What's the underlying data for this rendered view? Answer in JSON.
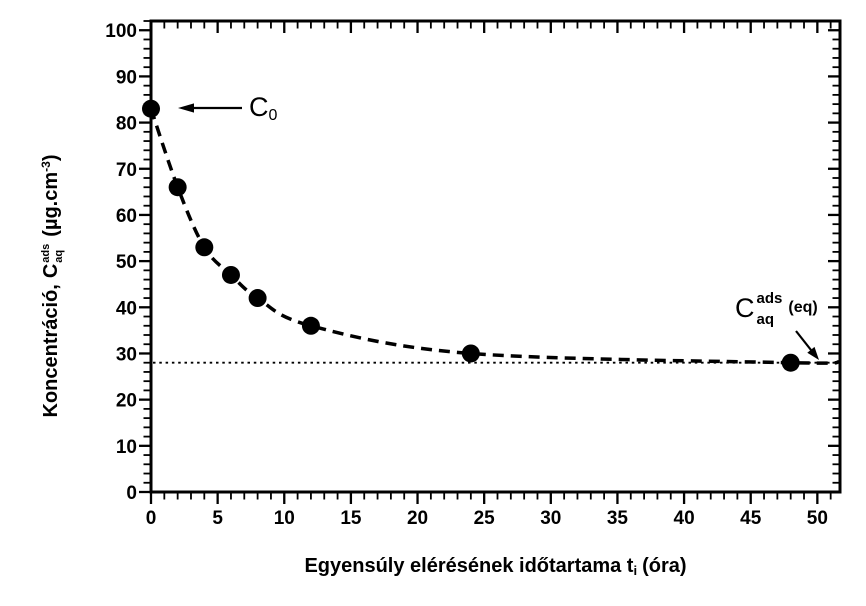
{
  "figure": {
    "background": "#ffffff",
    "foreground": "#000000"
  },
  "chart_data": {
    "type": "scatter",
    "x": [
      0,
      2,
      4,
      6,
      8,
      12,
      24,
      48
    ],
    "y": [
      83,
      66,
      53,
      47,
      42,
      36,
      30,
      28
    ],
    "initial_concentration": 83,
    "equilibrium_level": 28,
    "xlim": [
      0,
      51.7
    ],
    "ylim": [
      0,
      102
    ],
    "x_ticks": [
      0,
      5,
      10,
      15,
      20,
      25,
      30,
      35,
      40,
      45,
      50
    ],
    "y_ticks": [
      0,
      10,
      20,
      30,
      40,
      50,
      60,
      70,
      80,
      90,
      100
    ],
    "x_minor_step": 1,
    "y_minor_step": 2,
    "xlabel": "Egyensúly elérésének időtartama ti (óra)",
    "ylabel": "Koncentráció, Caq ads (µg.cm-3)",
    "grid": false,
    "legend": "none",
    "marker": "filled-circle",
    "curve_style": "dashed",
    "equilibrium_line_style": "dotted",
    "colors": {
      "foreground": "#000000",
      "background": "#ffffff"
    }
  },
  "x_axis": {
    "title_prefix": "Egyensúly elérésének időtartama t",
    "title_sub": "i",
    "title_suffix": "(óra)"
  },
  "y_axis": {
    "title_prefix": "Koncentráció,",
    "symbol_base": "C",
    "symbol_sup": "ads",
    "symbol_sub": "aq",
    "unit_open": "(µg.cm",
    "unit_exponent": "-3",
    "unit_close": ")"
  },
  "annotations": {
    "c0": {
      "base": "C",
      "sub": "0"
    },
    "ceq": {
      "base": "C",
      "sup": "ads",
      "sub": "aq",
      "suffix": "(eq)"
    }
  }
}
